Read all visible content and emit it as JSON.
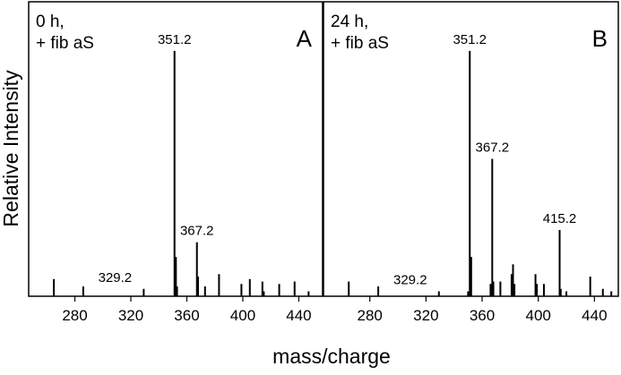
{
  "axis_labels": {
    "x": "mass/charge",
    "y": "Relative Intensity"
  },
  "chart_data": [
    {
      "type": "spectrum",
      "panel": "A",
      "condition": [
        "0 h,",
        "+ fib aS"
      ],
      "x": [
        265,
        286,
        329.2,
        351.2,
        352.2,
        353,
        367.2,
        368,
        373,
        383,
        399,
        405,
        414,
        415,
        426,
        437,
        447
      ],
      "values": [
        7,
        4,
        3,
        100,
        16,
        4,
        22,
        8,
        4,
        9,
        5,
        7,
        6,
        2,
        5,
        6,
        2
      ],
      "labeled_peaks": [
        351.2,
        367.2,
        329.2
      ],
      "color": "#000000",
      "xlim": [
        247,
        457
      ],
      "xticks": [
        280,
        320,
        360,
        400,
        440
      ],
      "ylim": [
        0,
        120
      ]
    },
    {
      "type": "spectrum",
      "panel": "B",
      "condition": [
        "24 h,",
        "+ fib aS"
      ],
      "x": [
        265,
        286,
        329.2,
        350,
        351.2,
        352.2,
        366,
        367.2,
        368,
        373,
        381,
        382,
        383,
        398,
        399,
        404,
        415.2,
        416,
        420,
        437,
        446,
        452
      ],
      "values": [
        6,
        4,
        2,
        2,
        100,
        16,
        5,
        56,
        6,
        6,
        9,
        13,
        5,
        9,
        5,
        5,
        27,
        3,
        2,
        8,
        3,
        2
      ],
      "labeled_peaks": [
        351.2,
        367.2,
        415.2,
        329.2
      ],
      "color": "#000000",
      "xlim": [
        247,
        457
      ],
      "xticks": [
        280,
        320,
        360,
        400,
        440
      ],
      "ylim": [
        0,
        120
      ]
    }
  ]
}
